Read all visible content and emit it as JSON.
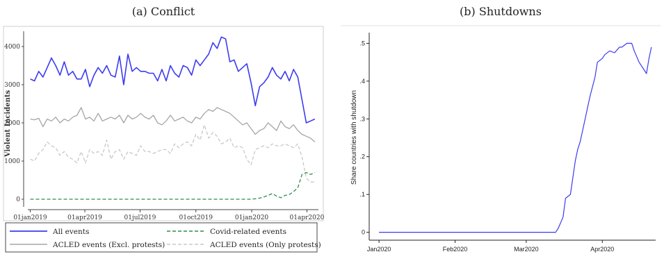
{
  "chart_data": [
    {
      "type": "line",
      "caption": "(a) Conflict",
      "ylabel": "Violent Incidents",
      "xlabel": "",
      "ylim": [
        -200,
        4400
      ],
      "yticks": [
        0,
        1000,
        2000,
        3000,
        4000
      ],
      "xlim": [
        "2018-12-28",
        "2020-04-20"
      ],
      "xticks": [
        {
          "label": "01jan2019",
          "date": "2019-01-01"
        },
        {
          "label": "01apr2019",
          "date": "2019-04-01"
        },
        {
          "label": "01jul2019",
          "date": "2019-07-01"
        },
        {
          "label": "01oct2019",
          "date": "2019-10-01"
        },
        {
          "label": "01jan2020",
          "date": "2020-01-01"
        },
        {
          "label": "01apr2020",
          "date": "2020-04-01"
        }
      ],
      "legend_position": "bottom",
      "series": [
        {
          "name": "All events",
          "color": "#3b3bf0",
          "dash": "solid",
          "x": [
            "2019-01-01",
            "2019-01-08",
            "2019-01-15",
            "2019-01-22",
            "2019-01-29",
            "2019-02-05",
            "2019-02-12",
            "2019-02-19",
            "2019-02-26",
            "2019-03-05",
            "2019-03-12",
            "2019-03-19",
            "2019-03-26",
            "2019-04-02",
            "2019-04-09",
            "2019-04-16",
            "2019-04-23",
            "2019-04-30",
            "2019-05-07",
            "2019-05-14",
            "2019-05-21",
            "2019-05-28",
            "2019-06-04",
            "2019-06-11",
            "2019-06-18",
            "2019-06-25",
            "2019-07-02",
            "2019-07-09",
            "2019-07-16",
            "2019-07-23",
            "2019-07-30",
            "2019-08-06",
            "2019-08-13",
            "2019-08-20",
            "2019-08-27",
            "2019-09-03",
            "2019-09-10",
            "2019-09-17",
            "2019-09-24",
            "2019-10-01",
            "2019-10-08",
            "2019-10-15",
            "2019-10-22",
            "2019-10-29",
            "2019-11-05",
            "2019-11-12",
            "2019-11-19",
            "2019-11-26",
            "2019-12-03",
            "2019-12-10",
            "2019-12-17",
            "2019-12-24",
            "2019-12-31",
            "2020-01-07",
            "2020-01-14",
            "2020-01-21",
            "2020-01-28",
            "2020-02-04",
            "2020-02-11",
            "2020-02-18",
            "2020-02-25",
            "2020-03-03",
            "2020-03-10",
            "2020-03-17",
            "2020-03-24",
            "2020-03-31",
            "2020-04-07",
            "2020-04-14"
          ],
          "values": [
            3150,
            3100,
            3350,
            3200,
            3450,
            3700,
            3500,
            3250,
            3600,
            3250,
            3350,
            3150,
            3150,
            3400,
            2950,
            3250,
            3450,
            3300,
            3500,
            3250,
            3200,
            3750,
            3000,
            3800,
            3350,
            3450,
            3350,
            3350,
            3300,
            3300,
            3100,
            3400,
            3100,
            3500,
            3300,
            3200,
            3500,
            3450,
            3250,
            3650,
            3500,
            3650,
            3800,
            4100,
            3950,
            4250,
            4200,
            3600,
            3650,
            3350,
            3450,
            3550,
            3050,
            2450,
            2950,
            3050,
            3200,
            3450,
            3250,
            3150,
            3350,
            3100,
            3400,
            3200,
            2600,
            2000,
            2050,
            2100
          ]
        },
        {
          "name": "ACLED events (Excl. protests)",
          "color": "#a5a5a5",
          "dash": "solid",
          "x": [
            "2019-01-01",
            "2019-01-08",
            "2019-01-15",
            "2019-01-22",
            "2019-01-29",
            "2019-02-05",
            "2019-02-12",
            "2019-02-19",
            "2019-02-26",
            "2019-03-05",
            "2019-03-12",
            "2019-03-19",
            "2019-03-26",
            "2019-04-02",
            "2019-04-09",
            "2019-04-16",
            "2019-04-23",
            "2019-04-30",
            "2019-05-07",
            "2019-05-14",
            "2019-05-21",
            "2019-05-28",
            "2019-06-04",
            "2019-06-11",
            "2019-06-18",
            "2019-06-25",
            "2019-07-02",
            "2019-07-09",
            "2019-07-16",
            "2019-07-23",
            "2019-07-30",
            "2019-08-06",
            "2019-08-13",
            "2019-08-20",
            "2019-08-27",
            "2019-09-03",
            "2019-09-10",
            "2019-09-17",
            "2019-09-24",
            "2019-10-01",
            "2019-10-08",
            "2019-10-15",
            "2019-10-22",
            "2019-10-29",
            "2019-11-05",
            "2019-11-12",
            "2019-11-19",
            "2019-11-26",
            "2019-12-03",
            "2019-12-10",
            "2019-12-17",
            "2019-12-24",
            "2019-12-31",
            "2020-01-07",
            "2020-01-14",
            "2020-01-21",
            "2020-01-28",
            "2020-02-04",
            "2020-02-11",
            "2020-02-18",
            "2020-02-25",
            "2020-03-03",
            "2020-03-10",
            "2020-03-17",
            "2020-03-24",
            "2020-03-31",
            "2020-04-07",
            "2020-04-14"
          ],
          "values": [
            2100,
            2080,
            2120,
            1900,
            2100,
            2050,
            2150,
            2000,
            2100,
            2050,
            2150,
            2200,
            2400,
            2100,
            2150,
            2050,
            2250,
            2050,
            2100,
            2150,
            2100,
            2200,
            2000,
            2200,
            2100,
            2150,
            2250,
            2150,
            2100,
            2200,
            2000,
            1950,
            2050,
            2200,
            2050,
            2100,
            2150,
            2050,
            2000,
            2150,
            2100,
            2250,
            2350,
            2300,
            2400,
            2350,
            2300,
            2250,
            2150,
            2050,
            1950,
            2000,
            1850,
            1700,
            1800,
            1850,
            2000,
            1900,
            1800,
            2050,
            1900,
            1850,
            1950,
            1800,
            1700,
            1650,
            1600,
            1500
          ]
        },
        {
          "name": "ACLED events (Only protests)",
          "color": "#c8c8c8",
          "dash": "dashed",
          "x": [
            "2019-01-01",
            "2019-01-08",
            "2019-01-15",
            "2019-01-22",
            "2019-01-29",
            "2019-02-05",
            "2019-02-12",
            "2019-02-19",
            "2019-02-26",
            "2019-03-05",
            "2019-03-12",
            "2019-03-19",
            "2019-03-26",
            "2019-04-02",
            "2019-04-09",
            "2019-04-16",
            "2019-04-23",
            "2019-04-30",
            "2019-05-07",
            "2019-05-14",
            "2019-05-21",
            "2019-05-28",
            "2019-06-04",
            "2019-06-11",
            "2019-06-18",
            "2019-06-25",
            "2019-07-02",
            "2019-07-09",
            "2019-07-16",
            "2019-07-23",
            "2019-07-30",
            "2019-08-06",
            "2019-08-13",
            "2019-08-20",
            "2019-08-27",
            "2019-09-03",
            "2019-09-10",
            "2019-09-17",
            "2019-09-24",
            "2019-10-01",
            "2019-10-08",
            "2019-10-15",
            "2019-10-22",
            "2019-10-29",
            "2019-11-05",
            "2019-11-12",
            "2019-11-19",
            "2019-11-26",
            "2019-12-03",
            "2019-12-10",
            "2019-12-17",
            "2019-12-24",
            "2019-12-31",
            "2020-01-07",
            "2020-01-14",
            "2020-01-21",
            "2020-01-28",
            "2020-02-04",
            "2020-02-11",
            "2020-02-18",
            "2020-02-25",
            "2020-03-03",
            "2020-03-10",
            "2020-03-17",
            "2020-03-24",
            "2020-03-31",
            "2020-04-07",
            "2020-04-14"
          ],
          "values": [
            1050,
            1000,
            1200,
            1300,
            1500,
            1400,
            1350,
            1150,
            1250,
            1100,
            1050,
            950,
            1250,
            950,
            1300,
            1200,
            1250,
            1150,
            1550,
            1050,
            1250,
            1300,
            1050,
            1250,
            1200,
            1150,
            1400,
            1250,
            1250,
            1200,
            1250,
            1300,
            1300,
            1200,
            1450,
            1350,
            1450,
            1500,
            1400,
            1700,
            1550,
            1950,
            1600,
            1750,
            1650,
            1450,
            1500,
            1600,
            1350,
            1400,
            1350,
            1050,
            900,
            1300,
            1350,
            1400,
            1350,
            1450,
            1400,
            1400,
            1450,
            1400,
            1350,
            1450,
            1100,
            550,
            450,
            450
          ]
        },
        {
          "name": "Covid-related events",
          "color": "#2e8b4a",
          "dash": "dashed",
          "x": [
            "2019-01-01",
            "2019-12-31",
            "2020-01-07",
            "2020-01-14",
            "2020-01-21",
            "2020-01-28",
            "2020-02-04",
            "2020-02-11",
            "2020-02-18",
            "2020-02-25",
            "2020-03-03",
            "2020-03-10",
            "2020-03-17",
            "2020-03-24",
            "2020-03-31",
            "2020-04-07",
            "2020-04-14"
          ],
          "values": [
            0,
            0,
            10,
            30,
            60,
            100,
            150,
            80,
            40,
            100,
            120,
            200,
            300,
            650,
            700,
            650,
            700
          ]
        }
      ]
    },
    {
      "type": "line",
      "caption": "(b) Shutdowns",
      "ylabel": "Share countries with shutdown",
      "xlabel": "",
      "ylim": [
        -0.01,
        0.51
      ],
      "yticks": [
        "0",
        ".1",
        ".2",
        ".3",
        ".4",
        ".5"
      ],
      "xlim": [
        "2019-12-28",
        "2020-04-25"
      ],
      "xticks": [
        {
          "label": "Jan2020",
          "date": "2020-01-01"
        },
        {
          "label": "Feb2020",
          "date": "2020-02-01"
        },
        {
          "label": "Mar2020",
          "date": "2020-03-01"
        },
        {
          "label": "Apr2020",
          "date": "2020-04-01"
        }
      ],
      "series": [
        {
          "color": "#3b3bf0",
          "x": [
            "2020-01-01",
            "2020-03-13",
            "2020-03-14",
            "2020-03-16",
            "2020-03-17",
            "2020-03-19",
            "2020-03-21",
            "2020-03-22",
            "2020-03-23",
            "2020-03-25",
            "2020-03-27",
            "2020-03-29",
            "2020-03-30",
            "2020-04-01",
            "2020-04-02",
            "2020-04-04",
            "2020-04-06",
            "2020-04-08",
            "2020-04-09",
            "2020-04-11",
            "2020-04-13",
            "2020-04-14",
            "2020-04-16",
            "2020-04-18",
            "2020-04-19",
            "2020-04-20",
            "2020-04-21"
          ],
          "values": [
            0,
            0,
            0.01,
            0.04,
            0.09,
            0.1,
            0.19,
            0.22,
            0.24,
            0.3,
            0.36,
            0.41,
            0.45,
            0.46,
            0.47,
            0.48,
            0.475,
            0.49,
            0.49,
            0.5,
            0.5,
            0.48,
            0.45,
            0.43,
            0.42,
            0.46,
            0.49
          ]
        }
      ]
    }
  ]
}
